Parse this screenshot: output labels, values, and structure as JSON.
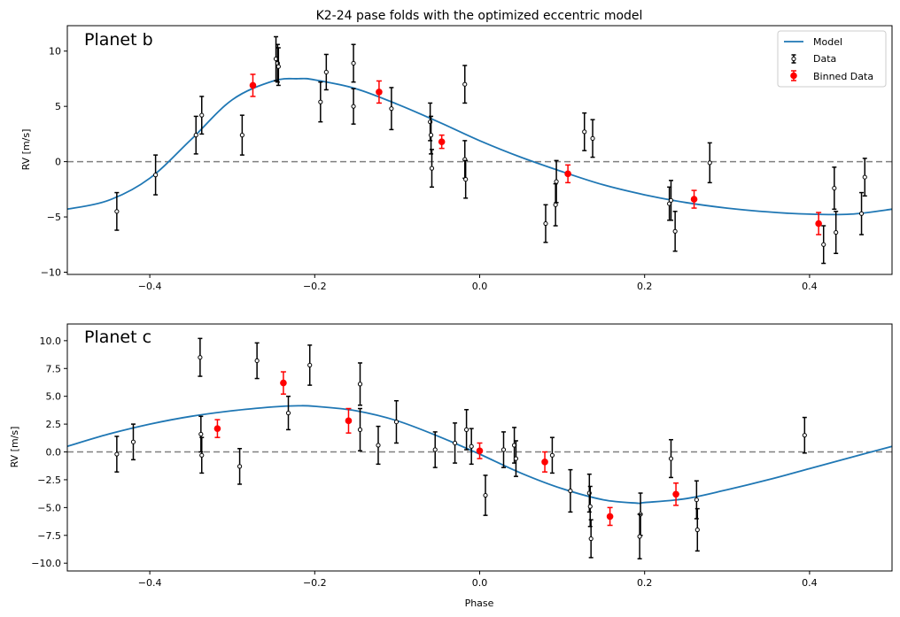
{
  "figure": {
    "title": "K2-24 pase folds with the optimized eccentric model"
  },
  "colors": {
    "model": "#1f77b4",
    "data": "#000000",
    "binned": "#ff0000",
    "zero_line": "#808080"
  },
  "chart_data": [
    {
      "type": "scatter",
      "panel_label": "Planet b",
      "title": "K2-24 pase folds with the optimized eccentric model",
      "xlabel": "",
      "ylabel": "RV [m/s]",
      "xlim": [
        -0.5,
        0.5
      ],
      "ylim": [
        -10.2,
        12.3
      ],
      "xticks": [
        -0.4,
        -0.2,
        0.0,
        0.2,
        0.4
      ],
      "xtick_labels": [
        "−0.4",
        "−0.2",
        "0.0",
        "0.2",
        "0.4"
      ],
      "yticks": [
        -10,
        -5,
        0,
        5,
        10
      ],
      "ytick_labels": [
        "−10",
        "−5",
        "0",
        "5",
        "10"
      ],
      "legend": {
        "position": "top-right",
        "entries": [
          "Model",
          "Data",
          "Binned Data"
        ]
      },
      "model_curve": {
        "x": [
          -0.5,
          -0.45,
          -0.4,
          -0.35,
          -0.3,
          -0.25,
          -0.22,
          -0.2,
          -0.15,
          -0.1,
          -0.05,
          0.0,
          0.05,
          0.1,
          0.15,
          0.2,
          0.25,
          0.3,
          0.35,
          0.4,
          0.45,
          0.5
        ],
        "y": [
          -4.3,
          -3.5,
          -1.5,
          2.0,
          5.6,
          7.3,
          7.5,
          7.4,
          6.6,
          5.2,
          3.6,
          1.9,
          0.4,
          -0.9,
          -2.1,
          -3.0,
          -3.7,
          -4.2,
          -4.55,
          -4.75,
          -4.75,
          -4.3
        ]
      },
      "data": [
        {
          "x": -0.44,
          "y": -4.5,
          "err": 1.7
        },
        {
          "x": -0.393,
          "y": -1.2,
          "err": 1.8
        },
        {
          "x": -0.344,
          "y": 2.4,
          "err": 1.7
        },
        {
          "x": -0.337,
          "y": 4.2,
          "err": 1.7
        },
        {
          "x": -0.288,
          "y": 2.4,
          "err": 1.8
        },
        {
          "x": -0.247,
          "y": 9.3,
          "err": 2.0
        },
        {
          "x": -0.245,
          "y": 8.9,
          "err": 1.7
        },
        {
          "x": -0.244,
          "y": 8.6,
          "err": 1.7
        },
        {
          "x": -0.193,
          "y": 5.4,
          "err": 1.8
        },
        {
          "x": -0.186,
          "y": 8.1,
          "err": 1.6
        },
        {
          "x": -0.153,
          "y": 8.9,
          "err": 1.7
        },
        {
          "x": -0.153,
          "y": 5.0,
          "err": 1.6
        },
        {
          "x": -0.107,
          "y": 4.8,
          "err": 1.9
        },
        {
          "x": -0.06,
          "y": 3.6,
          "err": 1.7
        },
        {
          "x": -0.059,
          "y": 2.4,
          "err": 1.7
        },
        {
          "x": -0.058,
          "y": -0.6,
          "err": 1.7
        },
        {
          "x": -0.018,
          "y": 7.0,
          "err": 1.7
        },
        {
          "x": -0.018,
          "y": 0.2,
          "err": 1.7
        },
        {
          "x": -0.017,
          "y": -1.6,
          "err": 1.7
        },
        {
          "x": 0.08,
          "y": -5.6,
          "err": 1.7
        },
        {
          "x": 0.092,
          "y": -3.9,
          "err": 1.9
        },
        {
          "x": 0.093,
          "y": -1.8,
          "err": 1.9
        },
        {
          "x": 0.127,
          "y": 2.7,
          "err": 1.7
        },
        {
          "x": 0.137,
          "y": 2.1,
          "err": 1.7
        },
        {
          "x": 0.23,
          "y": -3.8,
          "err": 1.5
        },
        {
          "x": 0.232,
          "y": -3.5,
          "err": 1.8
        },
        {
          "x": 0.237,
          "y": -6.3,
          "err": 1.8
        },
        {
          "x": 0.279,
          "y": -0.1,
          "err": 1.8
        },
        {
          "x": 0.417,
          "y": -7.5,
          "err": 1.7
        },
        {
          "x": 0.43,
          "y": -2.4,
          "err": 1.9
        },
        {
          "x": 0.432,
          "y": -6.4,
          "err": 1.9
        },
        {
          "x": 0.463,
          "y": -4.7,
          "err": 1.9
        },
        {
          "x": 0.467,
          "y": -1.4,
          "err": 1.7
        }
      ],
      "binned": [
        {
          "x": -0.275,
          "y": 6.9,
          "err": 1.0
        },
        {
          "x": -0.122,
          "y": 6.3,
          "err": 1.0
        },
        {
          "x": -0.046,
          "y": 1.8,
          "err": 0.6
        },
        {
          "x": 0.107,
          "y": -1.1,
          "err": 0.8
        },
        {
          "x": 0.26,
          "y": -3.4,
          "err": 0.8
        },
        {
          "x": 0.411,
          "y": -5.6,
          "err": 1.0
        }
      ]
    },
    {
      "type": "scatter",
      "panel_label": "Planet c",
      "title": "",
      "xlabel": "Phase",
      "ylabel": "RV [m/s]",
      "xlim": [
        -0.5,
        0.5
      ],
      "ylim": [
        -10.7,
        11.5
      ],
      "xticks": [
        -0.4,
        -0.2,
        0.0,
        0.2,
        0.4
      ],
      "xtick_labels": [
        "−0.4",
        "−0.2",
        "0.0",
        "0.2",
        "0.4"
      ],
      "yticks": [
        -10,
        -7.5,
        -5,
        -2.5,
        0,
        2.5,
        5,
        7.5,
        10
      ],
      "ytick_labels": [
        "−10.0",
        "−7.5",
        "−5.0",
        "−2.5",
        "0.0",
        "2.5",
        "5.0",
        "7.5",
        "10.0"
      ],
      "model_curve": {
        "x": [
          -0.5,
          -0.45,
          -0.4,
          -0.35,
          -0.3,
          -0.25,
          -0.22,
          -0.2,
          -0.15,
          -0.1,
          -0.05,
          0.0,
          0.05,
          0.1,
          0.15,
          0.19,
          0.2,
          0.25,
          0.3,
          0.35,
          0.4,
          0.45,
          0.5
        ],
        "y": [
          0.5,
          1.6,
          2.5,
          3.2,
          3.7,
          4.05,
          4.15,
          4.1,
          3.7,
          2.8,
          1.4,
          -0.2,
          -1.9,
          -3.3,
          -4.3,
          -4.6,
          -4.55,
          -4.2,
          -3.4,
          -2.5,
          -1.5,
          -0.5,
          0.5
        ]
      },
      "data": [
        {
          "x": -0.44,
          "y": -0.2,
          "err": 1.6
        },
        {
          "x": -0.42,
          "y": 0.9,
          "err": 1.6
        },
        {
          "x": -0.339,
          "y": 8.5,
          "err": 1.7
        },
        {
          "x": -0.338,
          "y": 1.6,
          "err": 1.6
        },
        {
          "x": -0.337,
          "y": -0.3,
          "err": 1.6
        },
        {
          "x": -0.291,
          "y": -1.3,
          "err": 1.6
        },
        {
          "x": -0.27,
          "y": 8.2,
          "err": 1.6
        },
        {
          "x": -0.232,
          "y": 3.5,
          "err": 1.5
        },
        {
          "x": -0.206,
          "y": 7.8,
          "err": 1.8
        },
        {
          "x": -0.145,
          "y": 6.1,
          "err": 1.9
        },
        {
          "x": -0.145,
          "y": 2.0,
          "err": 1.9
        },
        {
          "x": -0.123,
          "y": 0.6,
          "err": 1.7
        },
        {
          "x": -0.101,
          "y": 2.7,
          "err": 1.9
        },
        {
          "x": -0.054,
          "y": 0.2,
          "err": 1.6
        },
        {
          "x": -0.03,
          "y": 0.8,
          "err": 1.8
        },
        {
          "x": -0.016,
          "y": 2.0,
          "err": 1.8
        },
        {
          "x": -0.01,
          "y": 0.5,
          "err": 1.6
        },
        {
          "x": 0.007,
          "y": -3.9,
          "err": 1.8
        },
        {
          "x": 0.029,
          "y": 0.2,
          "err": 1.6
        },
        {
          "x": 0.042,
          "y": 0.6,
          "err": 1.6
        },
        {
          "x": 0.044,
          "y": -0.6,
          "err": 1.6
        },
        {
          "x": 0.088,
          "y": -0.3,
          "err": 1.6
        },
        {
          "x": 0.11,
          "y": -3.5,
          "err": 1.9
        },
        {
          "x": 0.133,
          "y": -3.7,
          "err": 1.7
        },
        {
          "x": 0.134,
          "y": -4.9,
          "err": 1.8
        },
        {
          "x": 0.135,
          "y": -7.8,
          "err": 1.7
        },
        {
          "x": 0.195,
          "y": -5.6,
          "err": 1.9
        },
        {
          "x": 0.194,
          "y": -7.6,
          "err": 2.0
        },
        {
          "x": 0.232,
          "y": -0.6,
          "err": 1.7
        },
        {
          "x": 0.263,
          "y": -4.3,
          "err": 1.7
        },
        {
          "x": 0.264,
          "y": -7.0,
          "err": 1.9
        },
        {
          "x": 0.394,
          "y": 1.5,
          "err": 1.6
        }
      ],
      "binned": [
        {
          "x": -0.318,
          "y": 2.1,
          "err": 0.8
        },
        {
          "x": -0.238,
          "y": 6.2,
          "err": 1.0
        },
        {
          "x": -0.159,
          "y": 2.8,
          "err": 1.1
        },
        {
          "x": 0.0,
          "y": 0.1,
          "err": 0.7
        },
        {
          "x": 0.079,
          "y": -0.9,
          "err": 0.9
        },
        {
          "x": 0.158,
          "y": -5.8,
          "err": 0.8
        },
        {
          "x": 0.238,
          "y": -3.8,
          "err": 1.0
        }
      ]
    }
  ]
}
